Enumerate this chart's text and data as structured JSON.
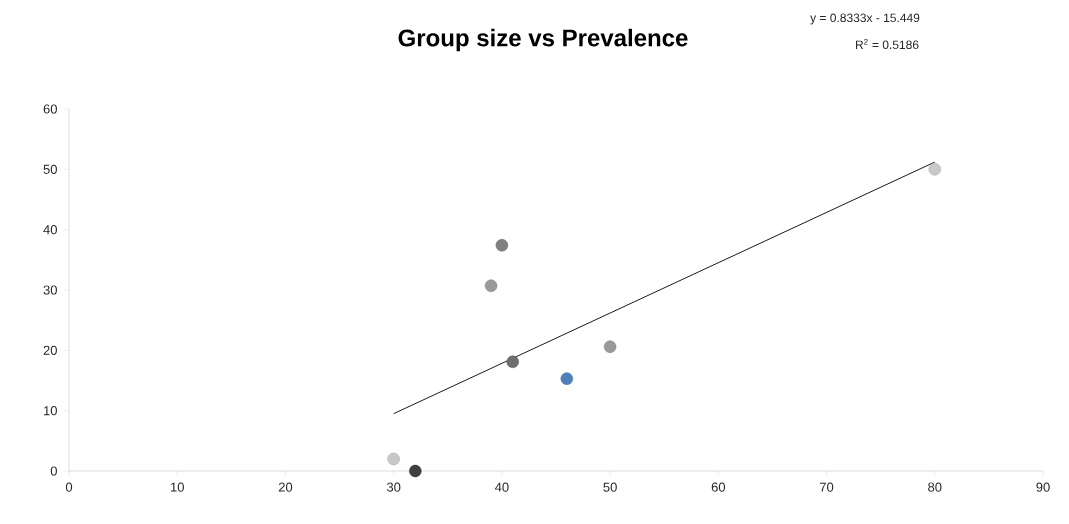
{
  "chart_data": {
    "type": "scatter",
    "title": "Group size vs Prevalence",
    "annotations": [
      "y = 0.8333x - 15.449",
      "R$^{2}$ = 0.5186"
    ],
    "series": [
      {
        "x": [
          30,
          32,
          39,
          40,
          41,
          46,
          50,
          80
        ],
        "values": [
          2,
          0,
          30.7,
          37.4,
          18.1,
          15.3,
          20.6,
          50
        ],
        "colors": [
          "#c8c8c8",
          "#404040",
          "#9a9a9a",
          "#808080",
          "#6e6e6e",
          "#4f81bd",
          "#9a9a9a",
          "#c8c8c8"
        ]
      },
      {
        "type": "line",
        "x": [
          30,
          80
        ],
        "values": [
          9.5,
          51.2
        ],
        "color": "#000000",
        "marker": "none"
      }
    ],
    "xlim": [
      0,
      90
    ],
    "xticks": [
      0,
      10,
      20,
      30,
      40,
      50,
      60,
      70,
      80,
      90
    ],
    "ylim": [
      0,
      60
    ],
    "yticks": [
      0,
      10,
      20,
      30,
      40,
      50,
      60
    ],
    "marker": "circle"
  }
}
